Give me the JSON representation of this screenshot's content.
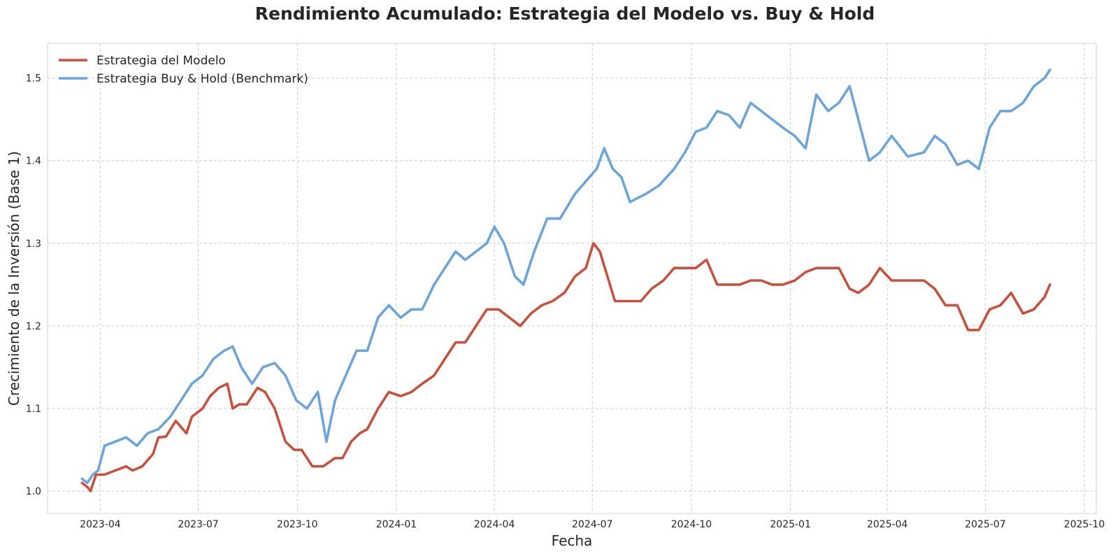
{
  "chart_data": {
    "type": "line",
    "title": "Rendimiento Acumulado: Estrategia del Modelo vs. Buy & Hold",
    "xlabel": "Fecha",
    "ylabel": "Crecimiento de la Inversión (Base 1)",
    "xlim": [
      "2023-02-11",
      "2025-10-12"
    ],
    "ylim": [
      0.973,
      1.542
    ],
    "x_ticks": [
      "2023-04",
      "2023-07",
      "2023-10",
      "2024-01",
      "2024-04",
      "2024-07",
      "2024-10",
      "2025-01",
      "2025-04",
      "2025-07",
      "2025-10"
    ],
    "y_ticks": [
      1.0,
      1.1,
      1.2,
      1.3,
      1.4,
      1.5
    ],
    "y_tick_labels": [
      "1.0",
      "1.1",
      "1.2",
      "1.3",
      "1.4",
      "1.5"
    ],
    "grid": true,
    "legend_position": "top-left",
    "series": [
      {
        "name": "Estrategia del Modelo",
        "color": "#c9503c",
        "x": [
          "2023-03-15",
          "2023-03-20",
          "2023-03-23",
          "2023-03-28",
          "2023-04-05",
          "2023-04-15",
          "2023-04-25",
          "2023-05-01",
          "2023-05-10",
          "2023-05-20",
          "2023-05-25",
          "2023-06-01",
          "2023-06-10",
          "2023-06-20",
          "2023-06-25",
          "2023-07-05",
          "2023-07-12",
          "2023-07-20",
          "2023-07-28",
          "2023-08-02",
          "2023-08-08",
          "2023-08-15",
          "2023-08-25",
          "2023-09-01",
          "2023-09-10",
          "2023-09-20",
          "2023-09-28",
          "2023-10-05",
          "2023-10-15",
          "2023-10-25",
          "2023-11-05",
          "2023-11-12",
          "2023-11-20",
          "2023-11-28",
          "2023-12-05",
          "2023-12-15",
          "2023-12-25",
          "2024-01-05",
          "2024-01-15",
          "2024-01-25",
          "2024-02-05",
          "2024-02-15",
          "2024-02-25",
          "2024-03-05",
          "2024-03-15",
          "2024-03-25",
          "2024-04-05",
          "2024-04-15",
          "2024-04-25",
          "2024-05-05",
          "2024-05-15",
          "2024-05-25",
          "2024-06-05",
          "2024-06-15",
          "2024-06-25",
          "2024-07-02",
          "2024-07-08",
          "2024-07-15",
          "2024-07-22",
          "2024-08-01",
          "2024-08-15",
          "2024-08-25",
          "2024-09-05",
          "2024-09-15",
          "2024-09-25",
          "2024-10-05",
          "2024-10-15",
          "2024-10-25",
          "2024-11-05",
          "2024-11-15",
          "2024-11-25",
          "2024-12-05",
          "2024-12-15",
          "2024-12-25",
          "2025-01-05",
          "2025-01-15",
          "2025-01-25",
          "2025-02-05",
          "2025-02-15",
          "2025-02-25",
          "2025-03-05",
          "2025-03-15",
          "2025-03-25",
          "2025-04-05",
          "2025-04-15",
          "2025-04-25",
          "2025-05-05",
          "2025-05-15",
          "2025-05-25",
          "2025-06-05",
          "2025-06-15",
          "2025-06-25",
          "2025-07-05",
          "2025-07-15",
          "2025-07-25",
          "2025-08-05",
          "2025-08-15",
          "2025-08-25",
          "2025-08-30"
        ],
        "values": [
          1.01,
          1.005,
          1.0,
          1.02,
          1.02,
          1.025,
          1.03,
          1.025,
          1.03,
          1.045,
          1.065,
          1.066,
          1.085,
          1.07,
          1.09,
          1.1,
          1.115,
          1.125,
          1.13,
          1.1,
          1.105,
          1.105,
          1.125,
          1.12,
          1.1,
          1.06,
          1.05,
          1.05,
          1.03,
          1.03,
          1.04,
          1.04,
          1.06,
          1.07,
          1.075,
          1.1,
          1.12,
          1.115,
          1.12,
          1.13,
          1.14,
          1.16,
          1.18,
          1.18,
          1.2,
          1.22,
          1.22,
          1.21,
          1.2,
          1.215,
          1.225,
          1.23,
          1.24,
          1.26,
          1.27,
          1.3,
          1.29,
          1.26,
          1.23,
          1.23,
          1.23,
          1.245,
          1.255,
          1.27,
          1.27,
          1.27,
          1.28,
          1.25,
          1.25,
          1.25,
          1.255,
          1.255,
          1.25,
          1.25,
          1.255,
          1.265,
          1.27,
          1.27,
          1.27,
          1.245,
          1.24,
          1.25,
          1.27,
          1.255,
          1.255,
          1.255,
          1.255,
          1.245,
          1.225,
          1.225,
          1.195,
          1.195,
          1.22,
          1.225,
          1.24,
          1.215,
          1.22,
          1.235,
          1.25
        ]
      },
      {
        "name": "Estrategia Buy & Hold (Benchmark)",
        "color": "#6ca4dc",
        "x": [
          "2023-03-15",
          "2023-03-20",
          "2023-03-25",
          "2023-03-30",
          "2023-04-05",
          "2023-04-15",
          "2023-04-25",
          "2023-05-05",
          "2023-05-15",
          "2023-05-25",
          "2023-06-05",
          "2023-06-15",
          "2023-06-25",
          "2023-07-05",
          "2023-07-15",
          "2023-07-25",
          "2023-08-02",
          "2023-08-10",
          "2023-08-20",
          "2023-08-30",
          "2023-09-10",
          "2023-09-20",
          "2023-09-30",
          "2023-10-10",
          "2023-10-20",
          "2023-10-28",
          "2023-11-05",
          "2023-11-15",
          "2023-11-25",
          "2023-12-05",
          "2023-12-15",
          "2023-12-25",
          "2024-01-05",
          "2024-01-15",
          "2024-01-25",
          "2024-02-05",
          "2024-02-15",
          "2024-02-25",
          "2024-03-05",
          "2024-03-15",
          "2024-03-25",
          "2024-04-01",
          "2024-04-10",
          "2024-04-20",
          "2024-04-28",
          "2024-05-08",
          "2024-05-20",
          "2024-06-01",
          "2024-06-15",
          "2024-06-25",
          "2024-07-05",
          "2024-07-12",
          "2024-07-20",
          "2024-07-28",
          "2024-08-05",
          "2024-08-20",
          "2024-09-01",
          "2024-09-15",
          "2024-09-25",
          "2024-10-05",
          "2024-10-15",
          "2024-10-25",
          "2024-11-05",
          "2024-11-15",
          "2024-11-25",
          "2024-12-05",
          "2024-12-15",
          "2024-12-25",
          "2025-01-05",
          "2025-01-15",
          "2025-01-25",
          "2025-02-05",
          "2025-02-15",
          "2025-02-25",
          "2025-03-05",
          "2025-03-15",
          "2025-03-25",
          "2025-04-05",
          "2025-04-20",
          "2025-05-05",
          "2025-05-15",
          "2025-05-25",
          "2025-06-05",
          "2025-06-15",
          "2025-06-25",
          "2025-07-05",
          "2025-07-15",
          "2025-07-25",
          "2025-08-05",
          "2025-08-15",
          "2025-08-25",
          "2025-08-30"
        ],
        "values": [
          1.015,
          1.01,
          1.02,
          1.025,
          1.055,
          1.06,
          1.065,
          1.055,
          1.07,
          1.075,
          1.09,
          1.11,
          1.13,
          1.14,
          1.16,
          1.17,
          1.175,
          1.15,
          1.13,
          1.15,
          1.155,
          1.14,
          1.11,
          1.1,
          1.12,
          1.06,
          1.11,
          1.14,
          1.17,
          1.17,
          1.21,
          1.225,
          1.21,
          1.22,
          1.22,
          1.25,
          1.27,
          1.29,
          1.28,
          1.29,
          1.3,
          1.32,
          1.3,
          1.26,
          1.25,
          1.29,
          1.33,
          1.33,
          1.36,
          1.375,
          1.39,
          1.415,
          1.39,
          1.38,
          1.35,
          1.36,
          1.37,
          1.39,
          1.41,
          1.435,
          1.44,
          1.46,
          1.455,
          1.44,
          1.47,
          1.46,
          1.45,
          1.44,
          1.43,
          1.415,
          1.48,
          1.46,
          1.47,
          1.49,
          1.45,
          1.4,
          1.41,
          1.43,
          1.405,
          1.41,
          1.43,
          1.42,
          1.395,
          1.4,
          1.39,
          1.44,
          1.46,
          1.46,
          1.47,
          1.49,
          1.5,
          1.51
        ]
      }
    ]
  }
}
